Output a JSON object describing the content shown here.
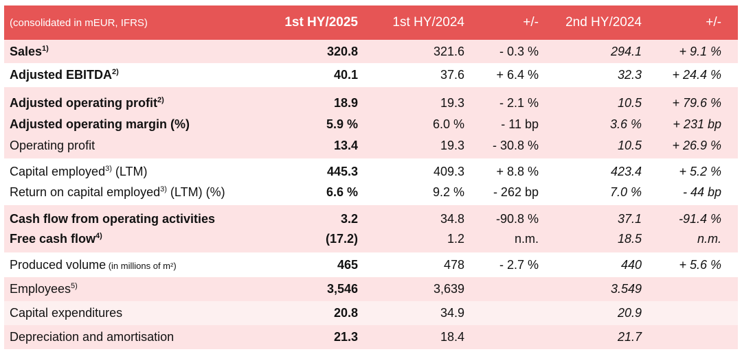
{
  "header": {
    "label": "(consolidated in mEUR, IFRS)",
    "col1": "1st HY/2025",
    "col2": "1st HY/2024",
    "col3": "+/-",
    "col4": "2nd HY/2024",
    "col5": "+/-"
  },
  "rows": [
    {
      "label": "Sales",
      "sup": "1)",
      "note": "",
      "c1": "320.8",
      "c2": "321.6",
      "c3": "- 0.3 %",
      "c4": "294.1",
      "c5": "+ 9.1 %"
    },
    {
      "label": "Adjusted EBITDA",
      "sup": "2)",
      "note": "",
      "c1": "40.1",
      "c2": "37.6",
      "c3": "+ 6.4 %",
      "c4": "32.3",
      "c5": "+ 24.4 %"
    },
    {
      "label": "Adjusted operating profit",
      "sup": "2)",
      "note": "",
      "c1": "18.9",
      "c2": "19.3",
      "c3": "- 2.1 %",
      "c4": "10.5",
      "c5": "+ 79.6 %"
    },
    {
      "label": "Adjusted operating margin (%)",
      "sup": "",
      "note": "",
      "c1": "5.9 %",
      "c2": "6.0 %",
      "c3": "- 11 bp",
      "c4": "3.6 %",
      "c5": "+ 231 bp"
    },
    {
      "label": "Operating profit",
      "sup": "",
      "note": "",
      "c1": "13.4",
      "c2": "19.3",
      "c3": "- 30.8 %",
      "c4": "10.5",
      "c5": "+ 26.9 %"
    },
    {
      "label": "Capital employed",
      "sup": "3)",
      "note": " (LTM)",
      "c1": "445.3",
      "c2": "409.3",
      "c3": "+ 8.8 %",
      "c4": "423.4",
      "c5": "+ 5.2 %"
    },
    {
      "label": "Return on capital employed",
      "sup": "3)",
      "note": " (LTM) (%)",
      "c1": "6.6 %",
      "c2": "9.2 %",
      "c3": "- 262 bp",
      "c4": "7.0 %",
      "c5": "- 44 bp"
    },
    {
      "label": "Cash flow from operating activities",
      "sup": "",
      "note": "",
      "c1": "3.2",
      "c2": "34.8",
      "c3": "-90.8 %",
      "c4": "37.1",
      "c5": "-91.4 %"
    },
    {
      "label": "Free cash flow",
      "sup": "4)",
      "note": "",
      "c1": "(17.2)",
      "c2": "1.2",
      "c3": "n.m.",
      "c4": "18.5",
      "c5": "n.m."
    },
    {
      "label": "Produced volume",
      "sup": "",
      "note": " (in millions of m²)",
      "c1": "465",
      "c2": "478",
      "c3": "- 2.7 %",
      "c4": "440",
      "c5": "+ 5.6 %"
    },
    {
      "label": "Employees",
      "sup": "5)",
      "note": "",
      "c1": "3,546",
      "c2": "3,639",
      "c3": "",
      "c4": "3.549",
      "c5": ""
    },
    {
      "label": "Capital expenditures",
      "sup": "",
      "note": "",
      "c1": "20.8",
      "c2": "34.9",
      "c3": "",
      "c4": "20.9",
      "c5": ""
    },
    {
      "label": "Depreciation and amortisation",
      "sup": "",
      "note": "",
      "c1": "21.3",
      "c2": "18.4",
      "c3": "",
      "c4": "21.7",
      "c5": ""
    }
  ]
}
